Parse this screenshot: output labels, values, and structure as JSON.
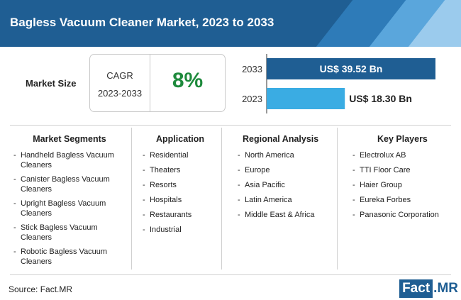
{
  "title": "Bagless Vacuum Cleaner Market, 2023 to 2033",
  "market_size": {
    "label": "Market Size",
    "cagr_label": "CAGR",
    "cagr_period": "2023-2033",
    "cagr_value": "8%"
  },
  "chart_data": {
    "type": "bar",
    "orientation": "horizontal",
    "categories": [
      "2033",
      "2023"
    ],
    "values": [
      39.52,
      18.3
    ],
    "value_labels": [
      "US$ 39.52 Bn",
      "US$ 18.30 Bn"
    ],
    "colors": [
      "#1f5e93",
      "#3aace3"
    ]
  },
  "sections": {
    "segments": {
      "heading": "Market Segments",
      "items": [
        "Handheld Bagless Vacuum Cleaners",
        "Canister Bagless Vacuum Cleaners",
        "Upright Bagless Vacuum Cleaners",
        "Stick Bagless Vacuum Cleaners",
        "Robotic Bagless Vacuum Cleaners"
      ]
    },
    "application": {
      "heading": "Application",
      "items": [
        "Residential",
        "Theaters",
        "Resorts",
        "Hospitals",
        "Restaurants",
        "Industrial"
      ]
    },
    "regional": {
      "heading": "Regional Analysis",
      "items": [
        "North America",
        "Europe",
        "Asia Pacific",
        "Latin America",
        "Middle East & Africa"
      ]
    },
    "players": {
      "heading": "Key Players",
      "items": [
        "Electrolux AB",
        "TTI Floor Care",
        "Haier Group",
        "Eureka Forbes",
        "Panasonic Corporation"
      ]
    }
  },
  "footer": {
    "source": "Source: Fact.MR",
    "logo_main": "Fact",
    "logo_dot": ".",
    "logo_suffix": "MR"
  },
  "colors": {
    "header": "#1f5e93",
    "bar_dark": "#1f5e93",
    "bar_light": "#3aace3",
    "cagr_green": "#1e8a3c"
  }
}
